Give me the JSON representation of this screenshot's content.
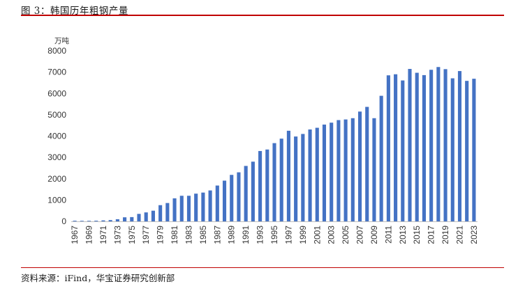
{
  "figure": {
    "title": "图 3：韩国历年粗钢产量",
    "source": "资料来源：iFind，华宝证券研究创新部"
  },
  "chart_data": {
    "type": "bar",
    "title": "",
    "xlabel": "",
    "ylabel": "万吨",
    "ylim": [
      0,
      8000
    ],
    "yticks": [
      0,
      1000,
      2000,
      3000,
      4000,
      5000,
      6000,
      7000,
      8000
    ],
    "ytick_labels": [
      "0",
      "1000",
      "2000",
      "3000",
      "4000",
      "5000",
      "6000",
      "7000",
      "8000"
    ],
    "grid": false,
    "legend": "none",
    "bar_color": "#4472c4",
    "categories": [
      "1967",
      "1968",
      "1969",
      "1970",
      "1971",
      "1972",
      "1973",
      "1974",
      "1975",
      "1976",
      "1977",
      "1978",
      "1979",
      "1980",
      "1981",
      "1982",
      "1983",
      "1984",
      "1985",
      "1986",
      "1987",
      "1988",
      "1989",
      "1990",
      "1991",
      "1992",
      "1993",
      "1994",
      "1995",
      "1996",
      "1997",
      "1998",
      "1999",
      "2000",
      "2001",
      "2002",
      "2003",
      "2004",
      "2005",
      "2006",
      "2007",
      "2008",
      "2009",
      "2010",
      "2011",
      "2012",
      "2013",
      "2014",
      "2015",
      "2016",
      "2017",
      "2018",
      "2019",
      "2020",
      "2021",
      "2022",
      "2023"
    ],
    "xtick_labels": [
      "1967",
      "1969",
      "1971",
      "1973",
      "1975",
      "1977",
      "1979",
      "1981",
      "1983",
      "1985",
      "1987",
      "1989",
      "1991",
      "1993",
      "1995",
      "1997",
      "1999",
      "2001",
      "2003",
      "2005",
      "2007",
      "2009",
      "2011",
      "2013",
      "2015",
      "2017",
      "2019",
      "2021",
      "2023"
    ],
    "values": [
      30,
      25,
      25,
      30,
      45,
      60,
      100,
      190,
      200,
      350,
      420,
      500,
      760,
      860,
      1080,
      1200,
      1200,
      1300,
      1350,
      1450,
      1680,
      1910,
      2180,
      2300,
      2600,
      2800,
      3300,
      3370,
      3670,
      3880,
      4250,
      3980,
      4100,
      4310,
      4390,
      4540,
      4630,
      4750,
      4780,
      4840,
      5150,
      5370,
      4840,
      5890,
      6850,
      6900,
      6610,
      7150,
      6970,
      6860,
      7110,
      7240,
      7140,
      6710,
      7050,
      6590,
      6690
    ]
  }
}
